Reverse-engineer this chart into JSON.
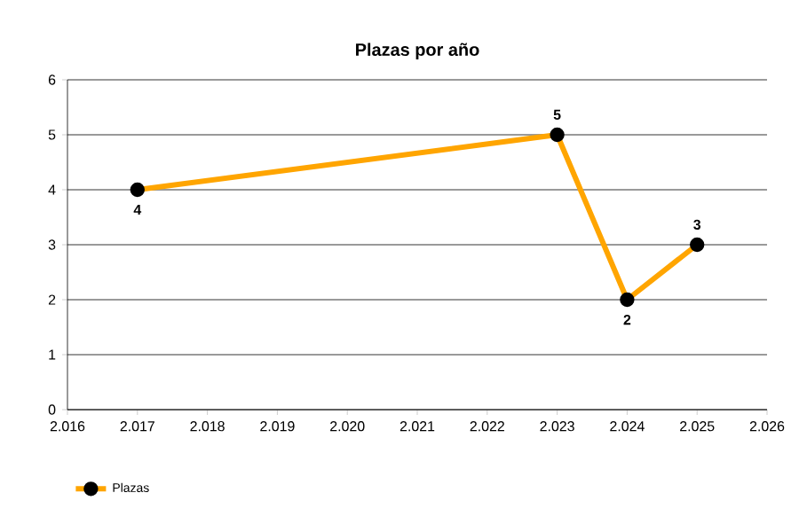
{
  "chart_data": {
    "type": "line",
    "title": "Plazas por año",
    "x": [
      2017,
      2023,
      2024,
      2025
    ],
    "series": [
      {
        "name": "Plazas",
        "color": "#ffa500",
        "values": [
          4,
          5,
          2,
          3
        ]
      }
    ],
    "xlim": [
      2016,
      2026
    ],
    "xticks": [
      {
        "value": 2016,
        "label": "2.016"
      },
      {
        "value": 2017,
        "label": "2.017"
      },
      {
        "value": 2018,
        "label": "2.018"
      },
      {
        "value": 2019,
        "label": "2.019"
      },
      {
        "value": 2020,
        "label": "2.020"
      },
      {
        "value": 2021,
        "label": "2.021"
      },
      {
        "value": 2022,
        "label": "2.022"
      },
      {
        "value": 2023,
        "label": "2.023"
      },
      {
        "value": 2024,
        "label": "2.024"
      },
      {
        "value": 2025,
        "label": "2.025"
      },
      {
        "value": 2026,
        "label": "2.026"
      }
    ],
    "ylim": [
      0,
      6
    ],
    "yticks": [
      0,
      1,
      2,
      3,
      4,
      5,
      6
    ],
    "grid": "y",
    "legend": "bottom left",
    "marker": "circle",
    "line_style": "solid",
    "data_labels": true
  }
}
